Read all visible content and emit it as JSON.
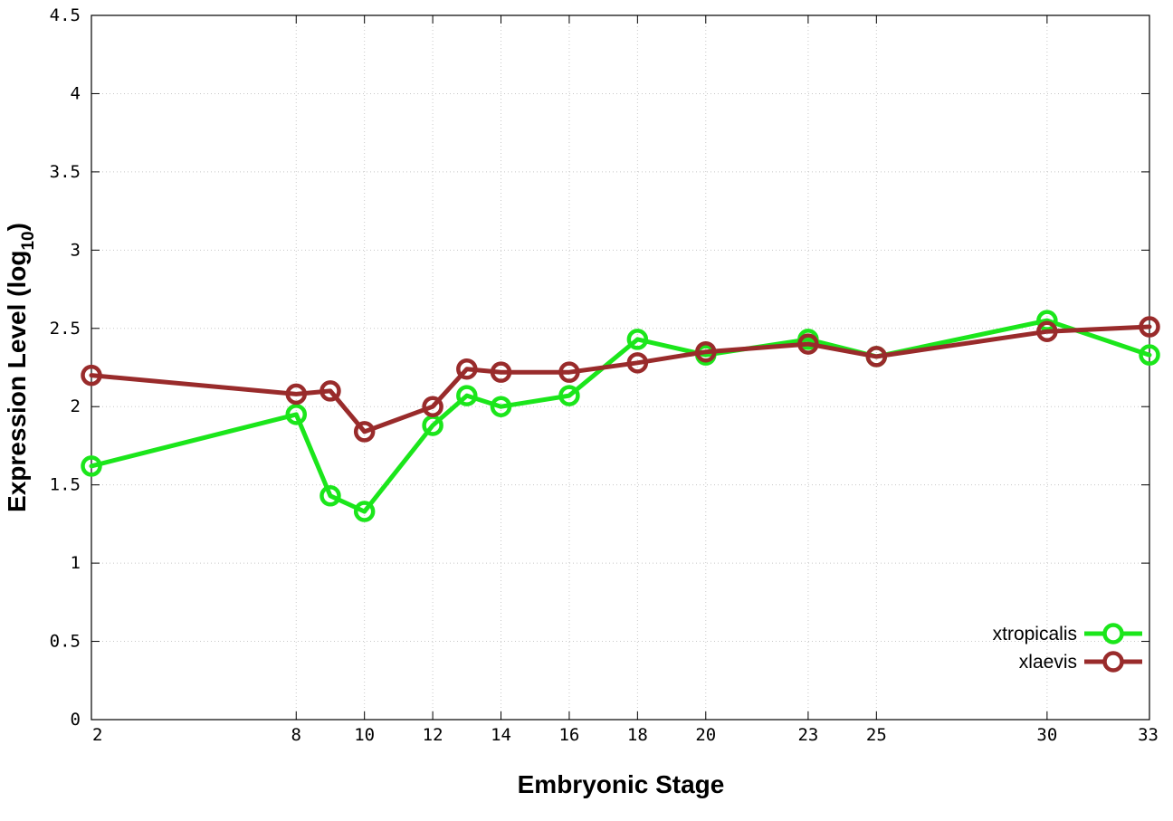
{
  "chart_data": {
    "type": "line",
    "xlabel": "Embryonic Stage",
    "ylabel": "Expression Level (log",
    "ylabel_subscript": "10",
    "ylabel_close": ")",
    "categories": [
      "2",
      "8",
      "9",
      "10",
      "12",
      "13",
      "14",
      "16",
      "18",
      "20",
      "23",
      "25",
      "30",
      "33"
    ],
    "x": [
      2,
      8,
      9,
      10,
      12,
      13,
      14,
      16,
      18,
      20,
      23,
      25,
      30,
      33
    ],
    "x_tick_labels": [
      "2",
      "8",
      "10",
      "12",
      "14",
      "16",
      "18",
      "20",
      "23",
      "25",
      "30",
      "33"
    ],
    "x_tick_values": [
      2,
      8,
      10,
      12,
      14,
      16,
      18,
      20,
      23,
      25,
      30,
      33
    ],
    "xlim": [
      2,
      33
    ],
    "y_tick_labels": [
      "0",
      "0.5",
      "1",
      "1.5",
      "2",
      "2.5",
      "3",
      "3.5",
      "4",
      "4.5"
    ],
    "y_tick_values": [
      0,
      0.5,
      1,
      1.5,
      2,
      2.5,
      3,
      3.5,
      4,
      4.5
    ],
    "ylim": [
      0,
      4.5
    ],
    "grid": true,
    "legend_position": "bottom-right",
    "series": [
      {
        "name": "xtropicalis",
        "color": "#1be61b",
        "values": [
          1.62,
          1.95,
          1.43,
          1.33,
          1.88,
          2.07,
          2.0,
          2.07,
          2.43,
          2.33,
          2.43,
          2.32,
          2.55,
          2.33
        ]
      },
      {
        "name": "xlaevis",
        "color": "#992b2b",
        "values": [
          2.2,
          2.08,
          2.1,
          1.84,
          2.0,
          2.24,
          2.22,
          2.22,
          2.28,
          2.35,
          2.4,
          2.32,
          2.48,
          2.51
        ]
      }
    ]
  }
}
